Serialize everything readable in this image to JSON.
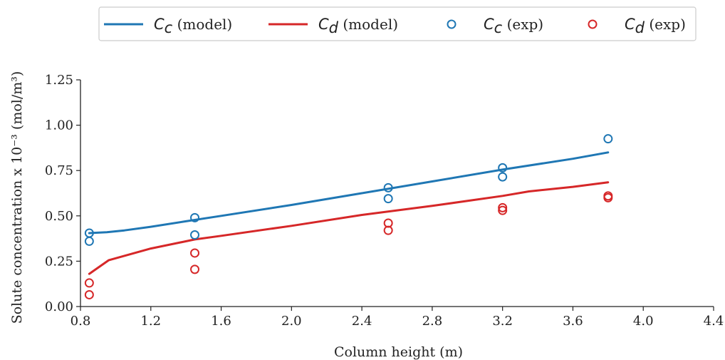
{
  "chart_data": {
    "type": "line",
    "title": "",
    "xlabel": "Column height (m)",
    "ylabel": "Solute concentration x 10⁻³ (mol/m³)",
    "xlim": [
      0.8,
      4.4
    ],
    "ylim": [
      0.0,
      1.25
    ],
    "xticks": [
      "0.8",
      "1.2",
      "1.6",
      "2.0",
      "2.4",
      "2.8",
      "3.2",
      "3.6",
      "4.0",
      "4.4"
    ],
    "yticks": [
      "0.00",
      "0.25",
      "0.50",
      "0.75",
      "1.00",
      "1.25"
    ],
    "grid": false,
    "legend_position": "top",
    "colors": {
      "cc": "#1f77b4",
      "cd": "#d62728"
    },
    "legend": [
      {
        "var": "C",
        "sub": "c",
        "suffix": " (model)",
        "kind": "line",
        "color": "#1f77b4"
      },
      {
        "var": "C",
        "sub": "d",
        "suffix": " (model)",
        "kind": "line",
        "color": "#d62728"
      },
      {
        "var": "C",
        "sub": "c",
        "suffix": " (exp)",
        "kind": "marker",
        "color": "#1f77b4"
      },
      {
        "var": "C",
        "sub": "d",
        "suffix": " (exp)",
        "kind": "marker",
        "color": "#d62728"
      }
    ],
    "series": [
      {
        "name": "Cc (model)",
        "kind": "line",
        "color": "#1f77b4",
        "x": [
          0.85,
          0.95,
          1.05,
          1.2,
          1.4,
          1.6,
          2.0,
          2.4,
          2.8,
          3.2,
          3.6,
          3.8
        ],
        "y": [
          0.405,
          0.41,
          0.42,
          0.44,
          0.47,
          0.5,
          0.56,
          0.625,
          0.69,
          0.755,
          0.815,
          0.85
        ]
      },
      {
        "name": "Cd (model)",
        "kind": "line",
        "color": "#d62728",
        "x": [
          0.85,
          0.96,
          1.2,
          1.45,
          1.6,
          2.0,
          2.4,
          2.8,
          3.2,
          3.35,
          3.6,
          3.8
        ],
        "y": [
          0.18,
          0.255,
          0.32,
          0.37,
          0.39,
          0.445,
          0.505,
          0.555,
          0.61,
          0.635,
          0.66,
          0.685
        ]
      },
      {
        "name": "Cc (exp)",
        "kind": "scatter",
        "color": "#1f77b4",
        "x": [
          0.85,
          0.85,
          1.45,
          1.45,
          2.55,
          2.55,
          3.2,
          3.2,
          3.8
        ],
        "y": [
          0.405,
          0.36,
          0.49,
          0.395,
          0.655,
          0.595,
          0.765,
          0.715,
          0.925
        ]
      },
      {
        "name": "Cd (exp)",
        "kind": "scatter",
        "color": "#d62728",
        "x": [
          0.85,
          0.85,
          1.45,
          1.45,
          2.55,
          2.55,
          3.2,
          3.2,
          3.8,
          3.8
        ],
        "y": [
          0.13,
          0.065,
          0.295,
          0.205,
          0.46,
          0.42,
          0.545,
          0.53,
          0.61,
          0.6
        ]
      }
    ]
  }
}
